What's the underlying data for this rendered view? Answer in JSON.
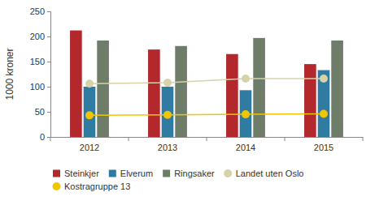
{
  "chart_data": {
    "type": "bar",
    "y_label": "1000 kroner",
    "categories": [
      "2012",
      "2013",
      "2014",
      "2015"
    ],
    "series": [
      {
        "name": "Steinkjer",
        "color": "#b3282d",
        "values": [
          212,
          174,
          165,
          145
        ]
      },
      {
        "name": "Elverum",
        "color": "#2f7ba1",
        "values": [
          100,
          100,
          93,
          133
        ]
      },
      {
        "name": "Ringsaker",
        "color": "#6d7d69",
        "values": [
          192,
          181,
          197,
          192
        ]
      },
      {
        "name": "Landet uten Oslo",
        "color": "#d6d3a9",
        "type": "line",
        "marker": "circle",
        "values": [
          106,
          108,
          116,
          116
        ]
      },
      {
        "name": "Kostragruppe 13",
        "color": "#f2c500",
        "type": "line",
        "marker": "circle",
        "values": [
          43,
          44,
          45,
          46
        ]
      }
    ],
    "ylim": [
      0,
      250
    ],
    "yticks": [
      0,
      50,
      100,
      150,
      200,
      250
    ],
    "grid": false,
    "legend": "bottom"
  }
}
